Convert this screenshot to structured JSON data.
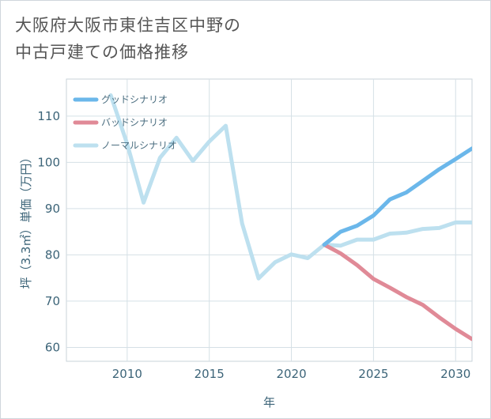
{
  "title_lines": [
    "大阪府大阪市東住吉区中野の",
    "中古戸建ての価格推移"
  ],
  "chart_data": {
    "type": "line",
    "xlabel": "年",
    "ylabel": "坪（3.3㎡）単価（万円）",
    "xlim": [
      2006.3,
      2031
    ],
    "ylim": [
      57,
      118
    ],
    "xticks": [
      2010,
      2015,
      2020,
      2025,
      2030
    ],
    "yticks": [
      60,
      70,
      80,
      90,
      100,
      110
    ],
    "legend_position": "top-left",
    "grid": true,
    "series": [
      {
        "name": "グッドシナリオ",
        "color": "#6bb7ea",
        "x": [
          2022,
          2023,
          2024,
          2025,
          2026,
          2027,
          2028,
          2029,
          2030,
          2031
        ],
        "y": [
          82.2,
          85.0,
          86.3,
          88.5,
          92.0,
          93.5,
          96.0,
          98.5,
          100.7,
          103.0
        ]
      },
      {
        "name": "バッドシナリオ",
        "color": "#e08a97",
        "x": [
          2022,
          2023,
          2024,
          2025,
          2026,
          2027,
          2028,
          2029,
          2030,
          2031
        ],
        "y": [
          82.2,
          80.3,
          77.8,
          74.8,
          72.9,
          70.9,
          69.2,
          66.5,
          64.0,
          61.8
        ]
      },
      {
        "name": "ノーマルシナリオ",
        "color": "#bde0ef",
        "x": [
          2009,
          2010,
          2011,
          2012,
          2013,
          2014,
          2015,
          2016,
          2017,
          2018,
          2019,
          2020,
          2021,
          2022,
          2023,
          2024,
          2025,
          2026,
          2027,
          2028,
          2029,
          2030,
          2031
        ],
        "y": [
          114.5,
          104.0,
          91.3,
          101.0,
          105.3,
          100.3,
          104.5,
          107.9,
          86.8,
          74.9,
          78.4,
          80.1,
          79.3,
          82.2,
          82.0,
          83.3,
          83.3,
          84.6,
          84.8,
          85.6,
          85.8,
          87.0,
          87.0
        ]
      }
    ]
  }
}
